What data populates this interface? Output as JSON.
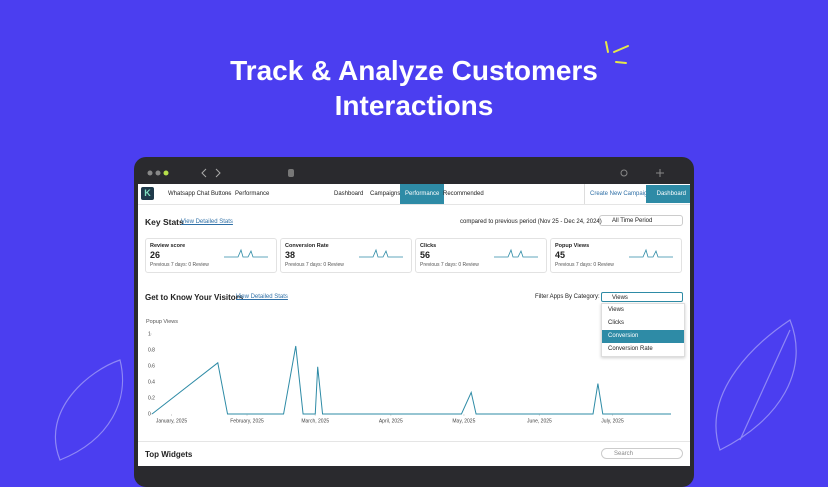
{
  "hero": {
    "title_lines": [
      "Track & Analyze Customers",
      "Interactions"
    ]
  },
  "nav": {
    "breadcrumb": [
      "Whatsapp Chat Buttons",
      "Performance"
    ],
    "tabs": [
      "Dashboard",
      "Campaigns",
      "Performance",
      "Recommended"
    ],
    "active_tab": 2,
    "create_button": "Create New Campaign",
    "dashboard_button": "Dashboard"
  },
  "key_stats": {
    "title": "Key Stats",
    "link": "View Detailed Stats",
    "comparison": "compared to previous period (Nov 25 - Dec 24, 2024)",
    "period": "All Time Period",
    "cards": [
      {
        "label": "Review score",
        "value": 26,
        "note": "Previous 7 days: 0 Review"
      },
      {
        "label": "Conversion Rate",
        "value": 38,
        "note": "Previous 7 days: 0 Review"
      },
      {
        "label": "Clicks",
        "value": 56,
        "note": "Previous 7 days: 0 Review"
      },
      {
        "label": "Popup Views",
        "value": 45,
        "note": "Previous 7 days: 0 Review"
      }
    ]
  },
  "visitors": {
    "title": "Get to Know Your Visitors",
    "link": "View Detailed Stats",
    "filter_label": "Filter Apps By Category:",
    "selected": "Views",
    "options": [
      "Views",
      "Clicks",
      "Conversion",
      "Conversion Rate"
    ],
    "highlighted_option": 2,
    "chart": {
      "type": "line",
      "y_label": "Popup Views",
      "color": "#2e8ba6",
      "x": [
        -8,
        19,
        23,
        46,
        51,
        54,
        59,
        60,
        62,
        119,
        123,
        125,
        173,
        175,
        177,
        205
      ],
      "values": [
        0,
        0.64,
        0,
        0,
        0.85,
        0,
        0,
        0.59,
        0,
        0,
        0.27,
        0,
        0,
        0.38,
        0,
        0
      ],
      "xlim": [
        -8,
        205
      ],
      "ylim": [
        0,
        1
      ],
      "yticks": [
        0,
        0.2,
        0.4,
        0.6,
        0.8,
        1
      ],
      "xticks": [
        {
          "value": 0,
          "label": "January, 2025"
        },
        {
          "value": 31,
          "label": "February, 2025"
        },
        {
          "value": 59,
          "label": "March, 2025"
        },
        {
          "value": 90,
          "label": "April, 2025"
        },
        {
          "value": 120,
          "label": "May, 2025"
        },
        {
          "value": 151,
          "label": "June, 2025"
        },
        {
          "value": 181,
          "label": "July, 2025"
        }
      ]
    }
  },
  "top_widgets": {
    "title": "Top Widgets",
    "search_placeholder": "Search"
  }
}
